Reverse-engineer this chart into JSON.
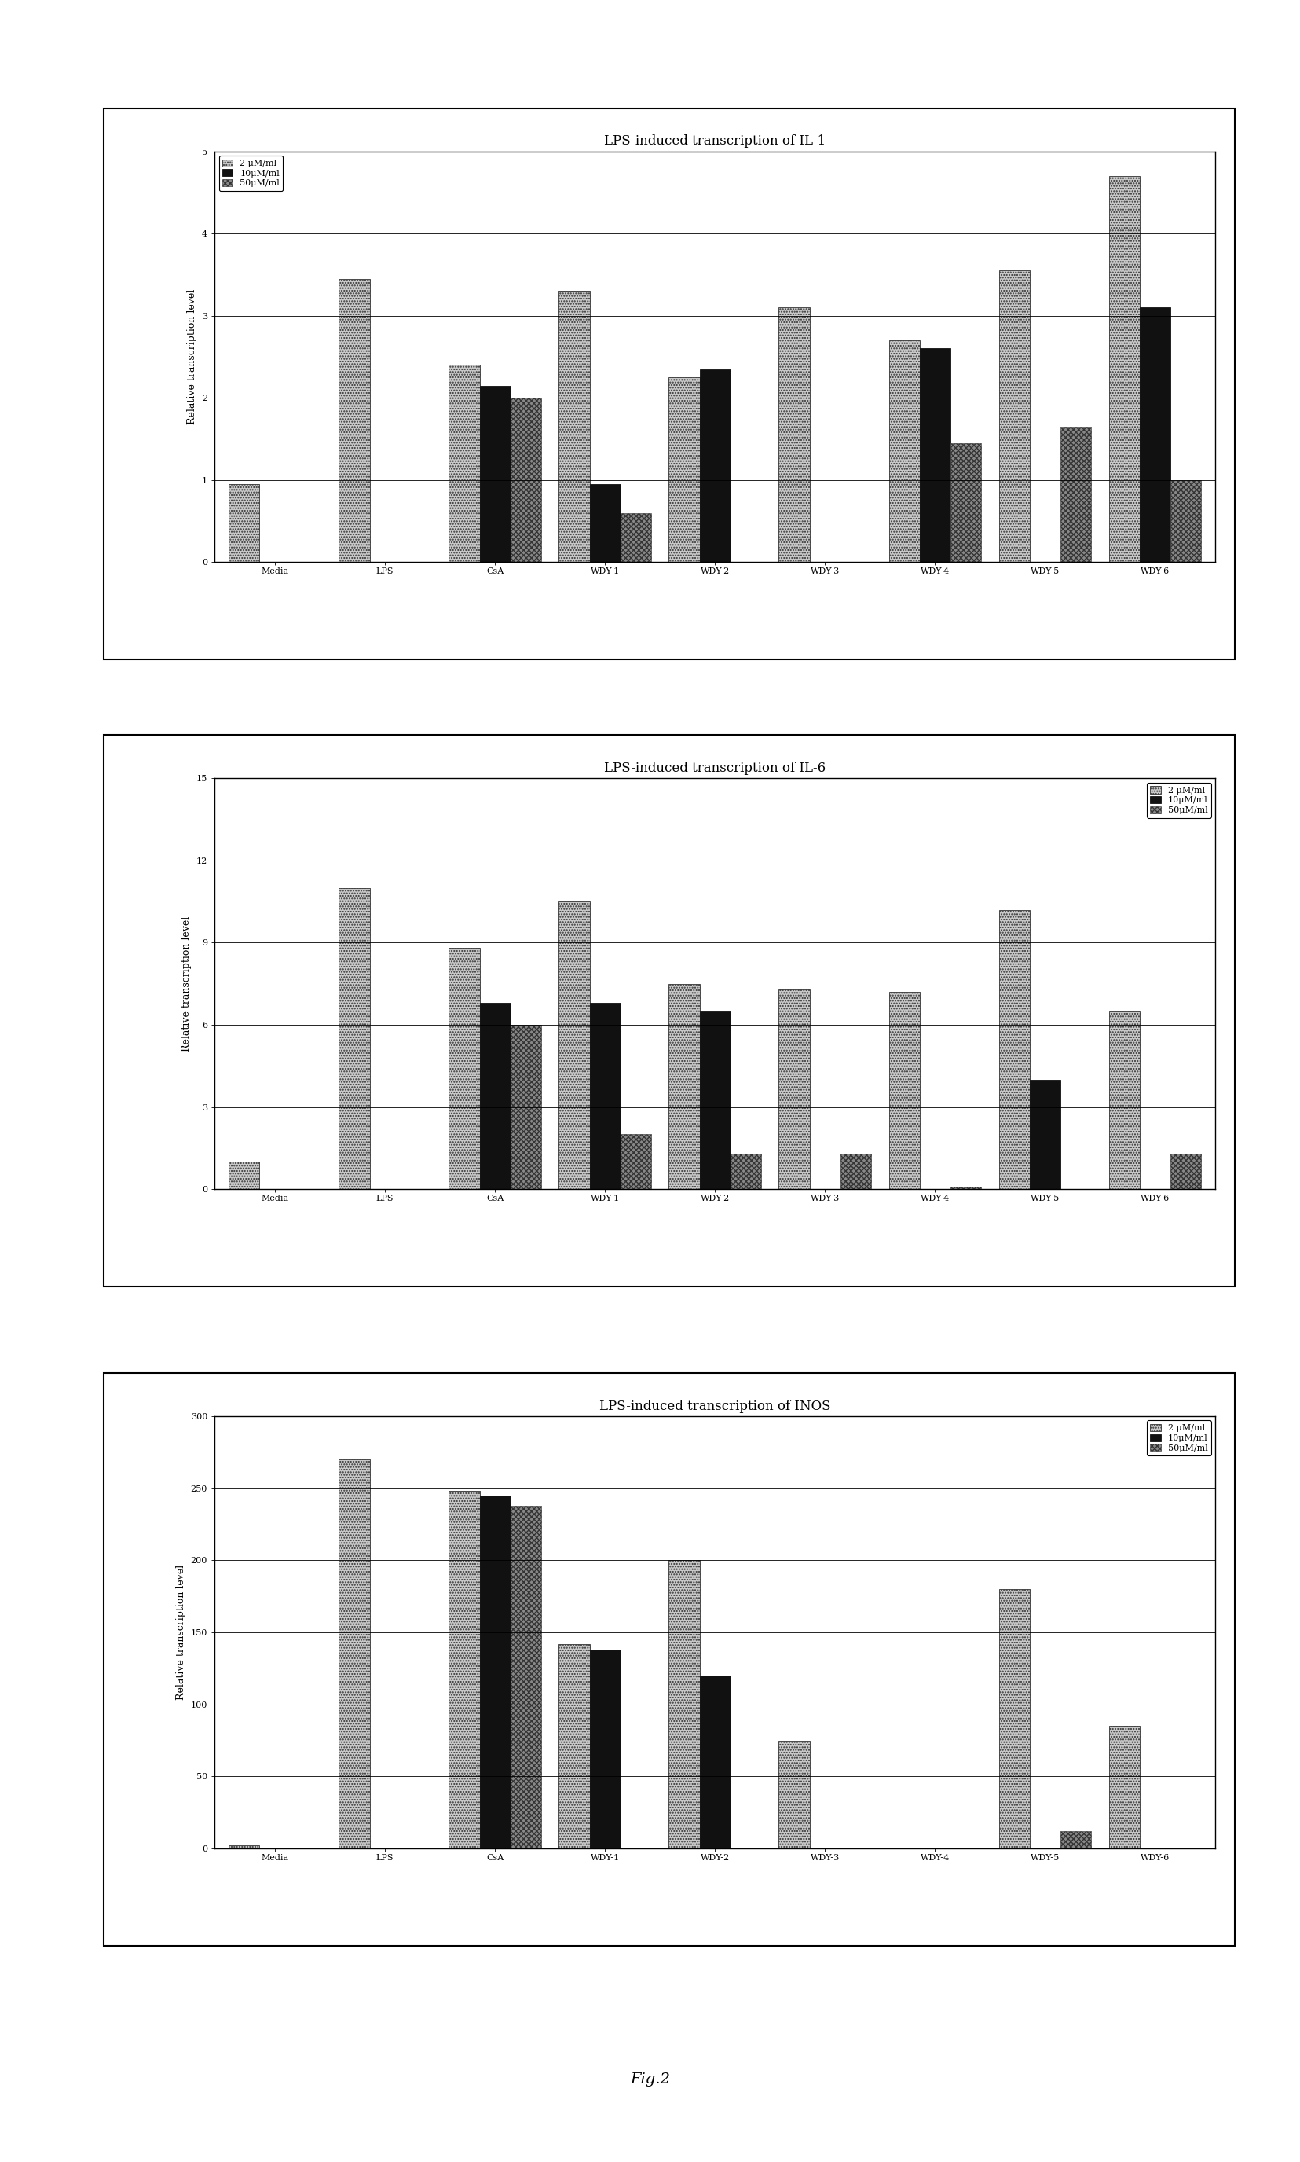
{
  "chart1": {
    "title": "LPS-induced transcription of IL-1",
    "ylabel": "Relative transcription level",
    "ylim": [
      0,
      5
    ],
    "yticks": [
      0,
      1,
      2,
      3,
      4,
      5
    ],
    "legend_loc": "upper left",
    "categories": [
      "Media",
      "LPS",
      "CsA",
      "WDY-1",
      "WDY-2",
      "WDY-3",
      "WDY-4",
      "WDY-5",
      "WDY-6"
    ],
    "series": {
      "2uM/ml": [
        0.95,
        3.45,
        2.4,
        3.3,
        2.25,
        3.1,
        2.7,
        3.55,
        4.7
      ],
      "10uM/ml": [
        0.0,
        0.0,
        2.15,
        0.95,
        2.35,
        0.0,
        2.6,
        0.0,
        3.1
      ],
      "50uM/ml": [
        0.0,
        0.0,
        2.0,
        0.6,
        0.0,
        0.0,
        1.45,
        1.65,
        1.0
      ]
    }
  },
  "chart2": {
    "title": "LPS-induced transcription of IL-6",
    "ylabel": "Relative transcription level",
    "ylim": [
      0,
      15
    ],
    "yticks": [
      0,
      3,
      6,
      9,
      12,
      15
    ],
    "legend_loc": "upper right",
    "categories": [
      "Media",
      "LPS",
      "CsA",
      "WDY-1",
      "WDY-2",
      "WDY-3",
      "WDY-4",
      "WDY-5",
      "WDY-6"
    ],
    "series": {
      "2uM/ml": [
        1.0,
        11.0,
        8.8,
        10.5,
        7.5,
        7.3,
        7.2,
        10.2,
        6.5
      ],
      "10uM/ml": [
        0.0,
        0.0,
        6.8,
        6.8,
        6.5,
        0.0,
        0.0,
        4.0,
        0.0
      ],
      "50uM/ml": [
        0.0,
        0.0,
        6.0,
        2.0,
        1.3,
        1.3,
        0.1,
        0.0,
        1.3
      ]
    }
  },
  "chart3": {
    "title": "LPS-induced transcription of INOS",
    "ylabel": "Relative transcription level",
    "ylim": [
      0,
      300
    ],
    "yticks": [
      0,
      50,
      100,
      150,
      200,
      250,
      300
    ],
    "legend_loc": "upper right",
    "categories": [
      "Media",
      "LPS",
      "CsA",
      "WDY-1",
      "WDY-2",
      "WDY-3",
      "WDY-4",
      "WDY-5",
      "WDY-6"
    ],
    "series": {
      "2uM/ml": [
        2.0,
        270.0,
        248.0,
        142.0,
        200.0,
        75.0,
        0.0,
        180.0,
        85.0
      ],
      "10uM/ml": [
        0.0,
        0.0,
        245.0,
        138.0,
        120.0,
        0.0,
        0.0,
        0.0,
        0.0
      ],
      "50uM/ml": [
        0.0,
        0.0,
        238.0,
        0.0,
        0.0,
        0.0,
        0.0,
        12.0,
        0.0
      ]
    }
  },
  "legend_labels": [
    "2 μM/ml",
    "10μM/ml",
    "50μM/ml"
  ],
  "fig_caption": "Fig.2",
  "bar_width": 0.28,
  "title_fontsize": 12,
  "label_fontsize": 9,
  "tick_fontsize": 8,
  "legend_fontsize": 8,
  "background_color": "#ffffff"
}
